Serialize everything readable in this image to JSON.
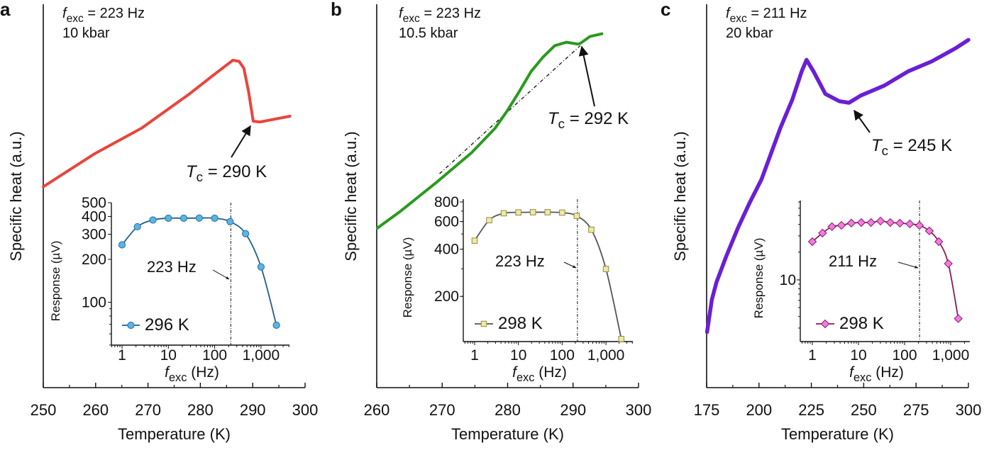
{
  "chart_data": [
    {
      "panel_label": "a",
      "type": "line",
      "xlabel": "Temperature (K)",
      "ylabel": "Specific heat (a.u.)",
      "xlim": [
        250,
        300
      ],
      "ylim": [
        0,
        100
      ],
      "xticks": [
        250,
        260,
        270,
        280,
        290,
        300
      ],
      "xtick_labels": [
        "250",
        "260",
        "270",
        "280",
        "290",
        "300"
      ],
      "color": "#e8453c",
      "annotation": {
        "f": "f",
        "sub": "exc",
        "rest": " = 223 Hz",
        "line2": "10 kbar"
      },
      "tc_label": {
        "T": "T",
        "sub": "c",
        "rest": " = 290 K"
      },
      "series": {
        "x": [
          250,
          259.8,
          268.8,
          277.9,
          282.4,
          286.2,
          287.4,
          288.3,
          289.2,
          290.1,
          291.4,
          297.1
        ],
        "y": [
          52.4,
          61,
          67.7,
          76.6,
          81.4,
          85.4,
          85.1,
          83.3,
          77.3,
          69.5,
          69.3,
          70.8
        ]
      },
      "inset": {
        "type": "line",
        "xscale": "log",
        "yscale": "log",
        "xlabel": {
          "f": "f",
          "sub": "exc",
          "rest": " (Hz)"
        },
        "ylabel": "Response (µV)",
        "xlim": [
          0.59,
          4300
        ],
        "ylim": [
          50,
          500
        ],
        "xticks": [
          1,
          10,
          100,
          1000
        ],
        "xtick_labels": [
          "1",
          "10",
          "100",
          "1,000"
        ],
        "yticks": [
          500,
          400,
          300,
          200,
          100
        ],
        "ytick_labels": [
          "500",
          "400",
          "300",
          "200",
          "100"
        ],
        "marker": "circle",
        "line_color": "#1f5f8b",
        "marker_color": "#5ab4e5",
        "legend": "296 K",
        "vline": 223,
        "vline_label": "223 Hz",
        "x": [
          1,
          2.15,
          4.64,
          10,
          21.5,
          46.4,
          100,
          215,
          464,
          1000,
          2150
        ],
        "y": [
          253,
          339,
          378,
          389,
          389,
          390,
          389,
          368,
          303,
          177,
          69
        ]
      }
    },
    {
      "panel_label": "b",
      "type": "line",
      "xlabel": "Temperature (K)",
      "ylabel": "Specific heat (a.u.)",
      "xlim": [
        260,
        300
      ],
      "ylim": [
        0,
        100
      ],
      "xticks": [
        260,
        270,
        280,
        290,
        300
      ],
      "xtick_labels": [
        "260",
        "270",
        "280",
        "290",
        "300"
      ],
      "color": "#2a9a1e",
      "annotation": {
        "f": "f",
        "sub": "exc",
        "rest": " = 223 Hz",
        "line2": "10.5 kbar"
      },
      "tc_label": {
        "T": "T",
        "sub": "c",
        "rest": " = 292 K"
      },
      "series": {
        "x": [
          260.1,
          263.7,
          269.1,
          274.5,
          278.1,
          279.9,
          281.8,
          283.6,
          285.4,
          287.2,
          289.0,
          290.8,
          291.1,
          292.6,
          294.4
        ],
        "y": [
          41.6,
          46.1,
          53.5,
          61.3,
          67.7,
          72.1,
          77.3,
          82.5,
          86.2,
          89.2,
          90.1,
          89.6,
          89.8,
          91.6,
          92.3
        ]
      },
      "baseline": {
        "x": [
          269.6,
          291.1
        ],
        "y": [
          55.8,
          89.2
        ]
      },
      "inset": {
        "type": "line",
        "xscale": "log",
        "yscale": "log",
        "xlabel": {
          "f": "f",
          "sub": "exc",
          "rest": " (Hz)"
        },
        "ylabel": "Response (µV)",
        "xlim": [
          0.55,
          4400
        ],
        "ylim": [
          103,
          834
        ],
        "xticks": [
          1,
          10,
          100,
          1000
        ],
        "xtick_labels": [
          "1",
          "10",
          "100",
          "1,000"
        ],
        "yticks": [
          800,
          600,
          400,
          200
        ],
        "ytick_labels": [
          "800",
          "600",
          "400",
          "200"
        ],
        "marker": "square",
        "line_color": "#555555",
        "marker_color": "#f0eaa0",
        "legend": "298 K",
        "vline": 223,
        "vline_label": "223 Hz",
        "x": [
          1,
          2.15,
          4.64,
          10,
          21.5,
          46.4,
          100,
          215,
          464,
          1000,
          2240
        ],
        "y": [
          453,
          612,
          678,
          686,
          688,
          688,
          684,
          652,
          532,
          299,
          107
        ]
      }
    },
    {
      "panel_label": "c",
      "type": "line",
      "xlabel": "Temperature (K)",
      "ylabel": "Specific heat (a.u.)",
      "xlim": [
        175,
        300
      ],
      "ylim": [
        0,
        100
      ],
      "xticks": [
        175,
        200,
        225,
        250,
        275,
        300
      ],
      "xtick_labels": [
        "175",
        "200",
        "225",
        "250",
        "275",
        "300"
      ],
      "color": "#6a1fd6",
      "annotation": {
        "f": "f",
        "sub": "exc",
        "rest": " = 211 Hz",
        "line2": "20 kbar"
      },
      "tc_label": {
        "T": "T",
        "sub": "c",
        "rest": " = 245 K"
      },
      "series": {
        "x": [
          175.2,
          177.5,
          179.7,
          184.3,
          189.9,
          195.6,
          201.2,
          205.7,
          210.2,
          215.9,
          220.4,
          222.7,
          226.0,
          231.7,
          238.4,
          243.0,
          248.6,
          259.9,
          271.2,
          282.5,
          293.8,
          300
        ],
        "y": [
          14.5,
          23,
          27.5,
          34.2,
          41.6,
          48.3,
          54.3,
          61,
          67.7,
          75.1,
          82.5,
          85.5,
          82.5,
          76.6,
          74.7,
          74.3,
          76.2,
          78.8,
          82.5,
          85.1,
          88.5,
          90.7
        ]
      },
      "inset": {
        "type": "line",
        "xscale": "log",
        "yscale": "log",
        "xlabel": {
          "f": "f",
          "sub": "exc",
          "rest": " (Hz)"
        },
        "ylabel": "Response (µV)",
        "xlim": [
          0.55,
          4700
        ],
        "ylim": [
          2.14,
          72.6
        ],
        "xticks": [
          1,
          10,
          100,
          1000
        ],
        "xtick_labels": [
          "1",
          "10",
          "100",
          "1,000"
        ],
        "yticks": [
          10
        ],
        "ytick_labels": [
          "10"
        ],
        "marker": "diamond",
        "line_color": "#8b1a5a",
        "marker_color": "#f07ae8",
        "legend": "298 K",
        "vline": 211,
        "vline_label": "211 Hz",
        "x": [
          1,
          1.66,
          2.66,
          4.27,
          7.0,
          11.5,
          18.7,
          30,
          49,
          79,
          130,
          210,
          345,
          553,
          888,
          1460
        ],
        "y": [
          26.0,
          32.2,
          37.8,
          39.1,
          41.3,
          41.9,
          41.9,
          43.5,
          41.9,
          41.3,
          40.5,
          39.0,
          34.0,
          26.0,
          15.0,
          3.8
        ]
      }
    }
  ]
}
